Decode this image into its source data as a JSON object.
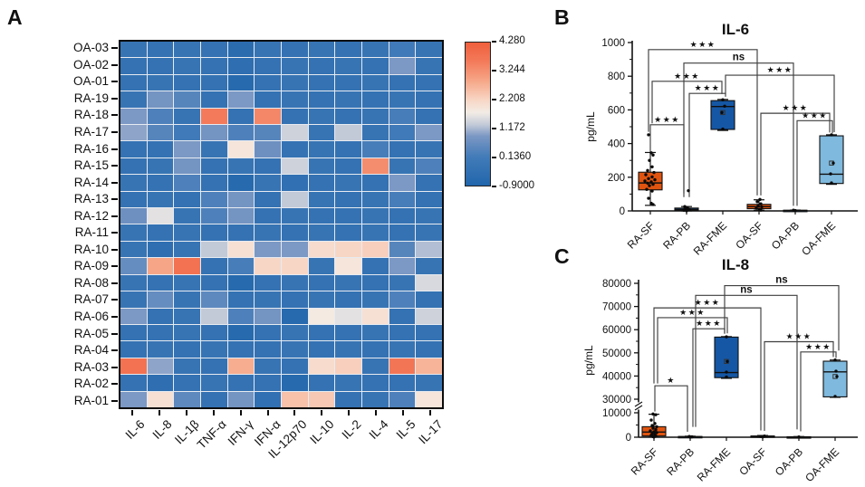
{
  "panels": {
    "a": "A",
    "b": "B",
    "c": "C"
  },
  "colors": {
    "box_orange": "#E0540F",
    "box_darkblue": "#1557A5",
    "box_lightblue": "#7FB9DD",
    "bracket_line": "#3f3f3f",
    "axis": "#111111",
    "heatmap_min_blue": "#2166AC",
    "heatmap_max_red": "#EF5F3D"
  },
  "chart_data": [
    {
      "type": "heatmap",
      "panel": "A",
      "rows": [
        "OA-03",
        "OA-02",
        "OA-01",
        "RA-19",
        "RA-18",
        "RA-17",
        "RA-16",
        "RA-15",
        "RA-14",
        "RA-13",
        "RA-12",
        "RA-11",
        "RA-10",
        "RA-09",
        "RA-08",
        "RA-07",
        "RA-06",
        "RA-05",
        "RA-04",
        "RA-03",
        "RA-02",
        "RA-01"
      ],
      "columns": [
        "IL-6",
        "IL-8",
        "IL-1β",
        "TNF-α",
        "IFN-γ",
        "IFN-α",
        "IL-12p70",
        "IL-10",
        "IL-2",
        "IL-4",
        "IL-5",
        "IL-17"
      ],
      "values": [
        [
          -0.2,
          -0.3,
          -0.2,
          -0.3,
          -0.6,
          -0.2,
          -0.3,
          -0.2,
          -0.3,
          -0.2,
          0.1,
          -0.2
        ],
        [
          -0.3,
          -0.3,
          -0.2,
          -0.3,
          -0.5,
          -0.3,
          -0.2,
          -0.3,
          -0.2,
          -0.3,
          0.9,
          -0.2
        ],
        [
          -0.3,
          -0.2,
          -0.3,
          -0.3,
          -0.7,
          -0.3,
          -0.2,
          -0.3,
          -0.3,
          -0.2,
          -0.3,
          -0.3
        ],
        [
          -0.2,
          0.8,
          0.4,
          -0.3,
          0.9,
          -0.3,
          -0.2,
          -0.3,
          -0.2,
          -0.3,
          -0.2,
          -0.3
        ],
        [
          0.9,
          0.3,
          -0.2,
          3.6,
          -0.3,
          3.4,
          -0.3,
          -0.2,
          -0.3,
          -0.2,
          0.2,
          -0.3
        ],
        [
          1.0,
          0.4,
          0.1,
          0.8,
          0.3,
          0.4,
          1.4,
          -0.2,
          1.3,
          -0.2,
          0.1,
          0.9
        ],
        [
          -0.3,
          -0.3,
          0.9,
          -0.2,
          1.9,
          0.7,
          -0.3,
          -0.2,
          -0.3,
          0.2,
          -0.3,
          -0.2
        ],
        [
          -0.3,
          -0.2,
          0.8,
          -0.3,
          -0.2,
          -0.3,
          1.4,
          -0.2,
          -0.3,
          3.3,
          -0.2,
          0.3
        ],
        [
          -0.2,
          -0.3,
          0.3,
          -0.3,
          -0.7,
          -0.2,
          -0.4,
          -0.3,
          -0.2,
          -0.3,
          0.9,
          -0.3
        ],
        [
          -0.3,
          -0.2,
          -0.3,
          0.3,
          0.8,
          -0.3,
          1.3,
          -0.2,
          -0.3,
          -0.2,
          0.2,
          -0.3
        ],
        [
          0.7,
          1.6,
          -0.2,
          0.3,
          0.8,
          -0.3,
          -0.2,
          -0.3,
          -0.3,
          -0.2,
          -0.3,
          -0.2
        ],
        [
          -0.2,
          -0.3,
          -0.2,
          -0.3,
          -0.3,
          -0.2,
          -0.3,
          -0.2,
          -0.3,
          -0.2,
          -0.3,
          -0.2
        ],
        [
          -0.2,
          -0.5,
          -0.2,
          1.3,
          2.0,
          0.9,
          0.9,
          2.1,
          2.2,
          2.3,
          0.4,
          1.2
        ],
        [
          0.6,
          2.9,
          3.8,
          -0.3,
          0.2,
          2.2,
          2.2,
          -0.2,
          1.9,
          -0.3,
          0.9,
          -0.2
        ],
        [
          -0.2,
          -0.3,
          -0.2,
          -0.3,
          -0.7,
          -0.3,
          -0.2,
          -0.3,
          -0.2,
          -0.3,
          -0.2,
          1.5
        ],
        [
          -0.2,
          0.6,
          -0.2,
          0.5,
          -0.3,
          -0.2,
          -0.3,
          -0.2,
          -0.3,
          -0.2,
          0.3,
          -0.3
        ],
        [
          0.9,
          -0.3,
          -0.2,
          1.3,
          0.3,
          0.8,
          -0.7,
          1.8,
          1.6,
          2.0,
          -0.3,
          1.4
        ],
        [
          -0.3,
          -0.3,
          -0.2,
          -0.3,
          -0.7,
          -0.3,
          -0.2,
          -0.3,
          -0.3,
          -0.2,
          -0.3,
          -0.3
        ],
        [
          -0.3,
          -0.2,
          -0.3,
          -0.2,
          -0.3,
          -0.3,
          -0.2,
          -0.3,
          -0.2,
          -0.3,
          -0.2,
          -0.3
        ],
        [
          3.8,
          1.0,
          -0.2,
          -0.3,
          2.8,
          -0.2,
          -0.3,
          2.1,
          2.3,
          -0.2,
          3.7,
          2.7
        ],
        [
          -0.3,
          -0.5,
          -0.3,
          -0.2,
          -0.3,
          -0.3,
          -0.7,
          -0.3,
          -0.2,
          -0.3,
          -0.3,
          -0.2
        ],
        [
          0.9,
          2.0,
          0.5,
          -0.3,
          0.8,
          -0.4,
          2.5,
          2.4,
          -0.3,
          -0.2,
          0.3,
          1.9
        ]
      ],
      "colorbar_ticks": [
        "4.280",
        "3.244",
        "2.208",
        "1.172",
        "0.1360",
        "-0.9000"
      ],
      "vmin": -0.9,
      "vmax": 4.28
    },
    {
      "type": "box",
      "panel": "B",
      "title": "IL-6",
      "ylabel": "pg/mL",
      "ylim": [
        0,
        1000
      ],
      "yticks": [
        0,
        200,
        400,
        600,
        800,
        1000
      ],
      "categories": [
        "RA-SF",
        "RA-PB",
        "RA-FME",
        "OA-SF",
        "OA-PB",
        "OA-FME"
      ],
      "series": [
        {
          "name": "RA-SF",
          "color": "#E0540F",
          "q1": 125,
          "median": 166,
          "q3": 230,
          "whisker_low": 33,
          "whisker_high": 347,
          "points": [
            [
              -2,
              452
            ],
            [
              1,
              345
            ],
            [
              3,
              332
            ],
            [
              -1,
              300
            ],
            [
              2,
              262
            ],
            [
              -3,
              240
            ],
            [
              4,
              228
            ],
            [
              -5,
              215
            ],
            [
              2,
              202
            ],
            [
              -2,
              192
            ],
            [
              5,
              185
            ],
            [
              -6,
              178
            ],
            [
              1,
              172
            ],
            [
              -3,
              165
            ],
            [
              3,
              158
            ],
            [
              -1,
              150
            ],
            [
              -4,
              128
            ],
            [
              2,
              118
            ],
            [
              -2,
              75
            ],
            [
              1,
              45
            ],
            [
              3,
              38
            ]
          ]
        },
        {
          "name": "RA-PB",
          "color": "#1557A5",
          "q1": 3,
          "median": 9,
          "q3": 17,
          "whisker_low": 0,
          "whisker_high": 26,
          "points": [
            [
              2,
              120
            ],
            [
              -2,
              26
            ],
            [
              1,
              18
            ],
            [
              -1,
              12
            ],
            [
              3,
              8
            ],
            [
              -3,
              4
            ],
            [
              0,
              1
            ]
          ]
        },
        {
          "name": "RA-FME",
          "color": "#1557A5",
          "q1": 484,
          "median": 620,
          "q3": 655,
          "whisker_low": 478,
          "whisker_high": 662,
          "mean": 584,
          "points": [
            [
              0,
              660
            ],
            [
              2,
              622
            ],
            [
              -1,
              584
            ],
            [
              0,
              486
            ]
          ]
        },
        {
          "name": "OA-SF",
          "color": "#E0540F",
          "q1": 13,
          "median": 25,
          "q3": 39,
          "whisker_low": 4,
          "whisker_high": 66,
          "points": [
            [
              1,
              68
            ],
            [
              -2,
              55
            ],
            [
              2,
              42
            ],
            [
              -1,
              30
            ],
            [
              3,
              24
            ],
            [
              -3,
              17
            ],
            [
              0,
              10
            ],
            [
              2,
              5
            ]
          ]
        },
        {
          "name": "OA-PB",
          "color": "#1557A5",
          "q1": 0,
          "median": 2,
          "q3": 4,
          "whisker_low": 0,
          "whisker_high": 5,
          "points": [
            [
              0,
              2
            ],
            [
              -2,
              4
            ]
          ]
        },
        {
          "name": "OA-FME",
          "color": "#7FB9DD",
          "q1": 163,
          "median": 218,
          "q3": 446,
          "whisker_low": 158,
          "whisker_high": 452,
          "mean": 284,
          "points": [
            [
              0,
              452
            ],
            [
              2,
              284
            ],
            [
              -1,
              220
            ],
            [
              0,
              166
            ]
          ]
        }
      ],
      "brackets": [
        {
          "a": 0,
          "b": 3,
          "label": "***",
          "level": 958,
          "da": 470,
          "db": 92,
          "ja": -2,
          "jb": -2
        },
        {
          "a": 1,
          "b": 4,
          "label": "ns",
          "level": 878,
          "da": 82,
          "db": 30,
          "ja": -3,
          "jb": -2
        },
        {
          "a": 2,
          "b": 5,
          "label": "***",
          "level": 806,
          "da": 694,
          "db": 468,
          "ja": 3,
          "jb": 3
        },
        {
          "a": 0,
          "b": 2,
          "label": "***",
          "level": 770,
          "da": 520,
          "db": 694,
          "ja": 2,
          "jb": -1
        },
        {
          "a": 1,
          "b": 2,
          "label": "***",
          "level": 698,
          "da": 82,
          "db": 678,
          "ja": 3,
          "jb": 3
        },
        {
          "a": 3,
          "b": 5,
          "label": "***",
          "level": 580,
          "da": 92,
          "db": 466,
          "ja": 2,
          "jb": -2
        },
        {
          "a": 4,
          "b": 5,
          "label": "***",
          "level": 536,
          "da": 30,
          "db": 462,
          "ja": 2,
          "jb": 1
        },
        {
          "a": 0,
          "b": 1,
          "label": "***",
          "level": 512,
          "da": 352,
          "db": 104,
          "ja": 0,
          "jb": -3
        }
      ]
    },
    {
      "type": "box",
      "panel": "C",
      "title": "IL-8",
      "ylabel": "pg/mL",
      "ylim": [
        0,
        80000
      ],
      "yticks": [
        0,
        10000,
        30000,
        40000,
        50000,
        60000,
        70000,
        80000
      ],
      "axis_break": {
        "after": 10000,
        "resume": 30000
      },
      "categories": [
        "RA-SF",
        "RA-PB",
        "RA-FME",
        "OA-SF",
        "OA-PB",
        "OA-FME"
      ],
      "series": [
        {
          "name": "RA-SF",
          "color": "#E0540F",
          "q1": 500,
          "median": 2100,
          "q3": 4300,
          "whisker_low": 50,
          "whisker_high": 9400,
          "points": [
            [
              -1,
              9500
            ],
            [
              2,
              9200
            ],
            [
              -3,
              7000
            ],
            [
              1,
              5600
            ],
            [
              -2,
              4800
            ],
            [
              3,
              4300
            ],
            [
              -1,
              3700
            ],
            [
              2,
              3100
            ],
            [
              -4,
              2600
            ],
            [
              0,
              2200
            ],
            [
              3,
              1900
            ],
            [
              -2,
              1500
            ],
            [
              1,
              1100
            ],
            [
              -3,
              800
            ],
            [
              2,
              500
            ],
            [
              -1,
              250
            ],
            [
              0,
              100
            ]
          ]
        },
        {
          "name": "RA-PB",
          "color": "#1557A5",
          "q1": 0,
          "median": 130,
          "q3": 320,
          "whisker_low": 0,
          "whisker_high": 420,
          "points": [
            [
              -1,
              300
            ],
            [
              2,
              150
            ],
            [
              0,
              50
            ]
          ]
        },
        {
          "name": "RA-FME",
          "color": "#1557A5",
          "q1": 39300,
          "median": 41500,
          "q3": 56800,
          "whisker_low": 39000,
          "whisker_high": 57000,
          "mean": 46300,
          "points": [
            [
              0,
              56900
            ],
            [
              1,
              46300
            ],
            [
              0,
              41700
            ],
            [
              0,
              39600
            ]
          ]
        },
        {
          "name": "OA-SF",
          "color": "#E0540F",
          "q1": 80,
          "median": 280,
          "q3": 520,
          "whisker_low": 0,
          "whisker_high": 700,
          "points": [
            [
              2,
              500
            ],
            [
              -2,
              300
            ],
            [
              0,
              150
            ]
          ]
        },
        {
          "name": "OA-PB",
          "color": "#1557A5",
          "q1": 0,
          "median": 80,
          "q3": 200,
          "whisker_low": 0,
          "whisker_high": 260,
          "points": [
            [
              0,
              120
            ]
          ]
        },
        {
          "name": "OA-FME",
          "color": "#7FB9DD",
          "q1": 31000,
          "median": 41800,
          "q3": 46400,
          "whisker_low": 30800,
          "whisker_high": 46900,
          "mean": 39800,
          "points": [
            [
              0,
              46900
            ],
            [
              1,
              42100
            ],
            [
              2,
              39800
            ],
            [
              0,
              31200
            ]
          ]
        }
      ],
      "brackets": [
        {
          "a": 2,
          "b": 5,
          "label": "ns",
          "level": 79000,
          "da": 58600,
          "db": 51000,
          "ja": -2,
          "jb": 4
        },
        {
          "a": 1,
          "b": 4,
          "label": "ns",
          "level": 74800,
          "da": 4200,
          "db": 3200,
          "ja": 6,
          "jb": -2
        },
        {
          "a": 0,
          "b": 3,
          "label": "***",
          "level": 69400,
          "da": 36800,
          "db": 2800,
          "ja": 0,
          "jb": -2
        },
        {
          "a": 0,
          "b": 2,
          "label": "***",
          "level": 65200,
          "da": 36800,
          "db": 58400,
          "ja": 4,
          "jb": 1
        },
        {
          "a": 1,
          "b": 2,
          "label": "***",
          "level": 60400,
          "da": 4200,
          "db": 58200,
          "ja": 3,
          "jb": -2
        },
        {
          "a": 3,
          "b": 5,
          "label": "***",
          "level": 54800,
          "da": 2600,
          "db": 48200,
          "ja": 2,
          "jb": -2
        },
        {
          "a": 4,
          "b": 5,
          "label": "***",
          "level": 50400,
          "da": 2400,
          "db": 47800,
          "ja": 2,
          "jb": 1
        },
        {
          "a": 0,
          "b": 1,
          "label": "*",
          "level": 35800,
          "da": 11800,
          "db": 2200,
          "ja": 1,
          "jb": -3
        }
      ]
    }
  ]
}
